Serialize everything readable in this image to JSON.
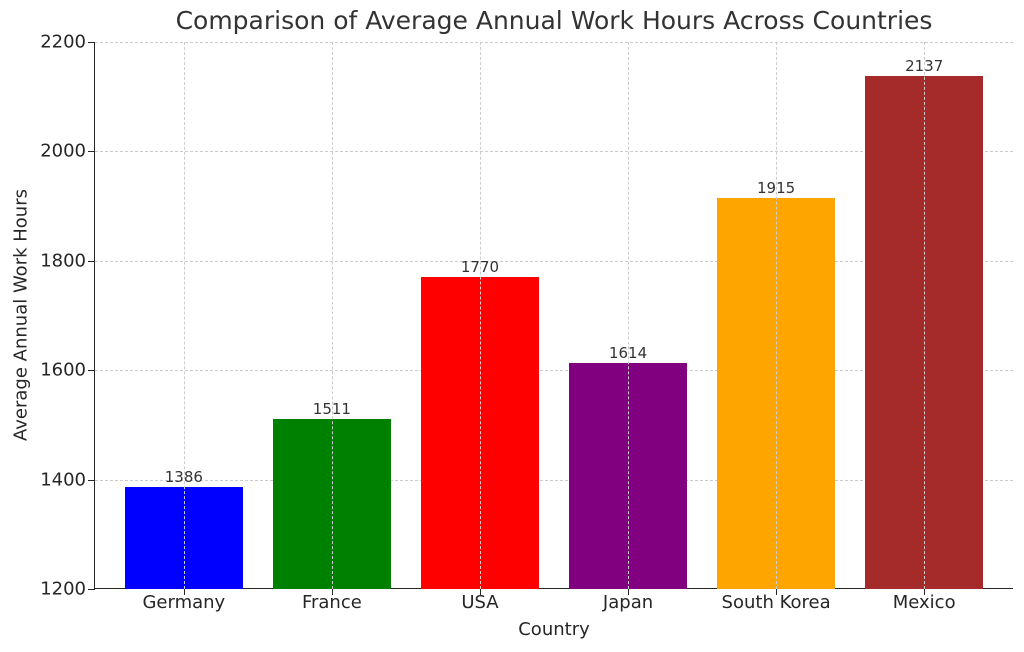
{
  "chart_data": {
    "type": "bar",
    "title": "Comparison of Average Annual Work Hours Across Countries",
    "xlabel": "Country",
    "ylabel": "Average Annual Work Hours",
    "categories": [
      "Germany",
      "France",
      "USA",
      "Japan",
      "South Korea",
      "Mexico"
    ],
    "values": [
      1386,
      1511,
      1770,
      1614,
      1915,
      2137
    ],
    "colors": [
      "#0000ff",
      "#008000",
      "#ff0000",
      "#800080",
      "#ffa500",
      "#a52a2a"
    ],
    "data_labels": [
      "1386",
      "1511",
      "1770",
      "1614",
      "1915",
      "2137"
    ],
    "ylim": [
      1200,
      2200
    ],
    "yticks": [
      1200,
      1400,
      1600,
      1800,
      2000,
      2200
    ],
    "grid": true,
    "grid_style": "dashed",
    "legend": null
  }
}
